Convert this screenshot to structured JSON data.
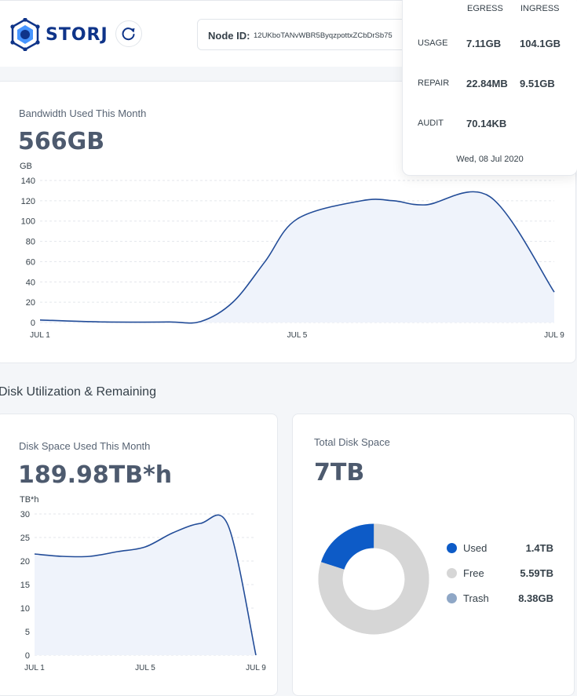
{
  "header": {
    "brand": "STORJ",
    "node_id_label": "Node ID:",
    "node_id_value": "12UKboTANvWBR5ByqzpottxZCbDrSb75"
  },
  "popup": {
    "headers": [
      "EGRESS",
      "INGRESS"
    ],
    "rows": [
      {
        "label": "USAGE",
        "egress": "7.11GB",
        "ingress": "104.1GB"
      },
      {
        "label": "REPAIR",
        "egress": "22.84MB",
        "ingress": "9.51GB"
      },
      {
        "label": "AUDIT",
        "egress": "70.14KB",
        "ingress": ""
      }
    ],
    "date": "Wed, 08 Jul 2020"
  },
  "bandwidth": {
    "title": "Bandwidth Used This Month",
    "value": "566GB",
    "unit": "GB"
  },
  "section_title": "Disk Utilization & Remaining",
  "disk_space": {
    "title": "Disk Space Used This Month",
    "value": "189.98TB*h",
    "unit": "TB*h"
  },
  "total_disk": {
    "title": "Total Disk Space",
    "value": "7TB",
    "legend": [
      {
        "label": "Used",
        "value": "1.4TB",
        "color": "#0d5bc7"
      },
      {
        "label": "Free",
        "value": "5.59TB",
        "color": "#d6d6d6"
      },
      {
        "label": "Trash",
        "value": "8.38GB",
        "color": "#8fa7c6"
      }
    ]
  },
  "chart_data": [
    {
      "type": "area",
      "ylabel": "GB",
      "x_tick_labels": [
        "JUL 1",
        "JUL 5",
        "JUL 9"
      ],
      "ylim": [
        0,
        140
      ],
      "yticks": [
        0,
        20,
        40,
        60,
        80,
        100,
        120,
        140
      ],
      "x": [
        1,
        2,
        3,
        3.5,
        4,
        4.5,
        5,
        6,
        6.5,
        7,
        8,
        9
      ],
      "values": [
        2.5,
        0.5,
        0.5,
        1,
        20,
        60,
        102,
        120,
        120,
        116,
        124,
        30
      ],
      "grid": true,
      "color": "#224c98"
    },
    {
      "type": "area",
      "ylabel": "TB*h",
      "x_tick_labels": [
        "JUL 1",
        "JUL 5",
        "JUL 9"
      ],
      "ylim": [
        0,
        30
      ],
      "yticks": [
        0,
        5,
        10,
        15,
        20,
        25,
        30
      ],
      "x": [
        1,
        2,
        3,
        4,
        5,
        6,
        7,
        8,
        9
      ],
      "values": [
        21.5,
        21,
        21,
        22,
        23,
        26,
        28,
        27.5,
        0
      ],
      "grid": true,
      "color": "#224c98"
    },
    {
      "type": "pie",
      "categories": [
        "Used",
        "Free",
        "Trash"
      ],
      "values": [
        1.4,
        5.59,
        0.00838
      ],
      "colors": [
        "#0d5bc7",
        "#d6d6d6",
        "#8fa7c6"
      ]
    }
  ]
}
